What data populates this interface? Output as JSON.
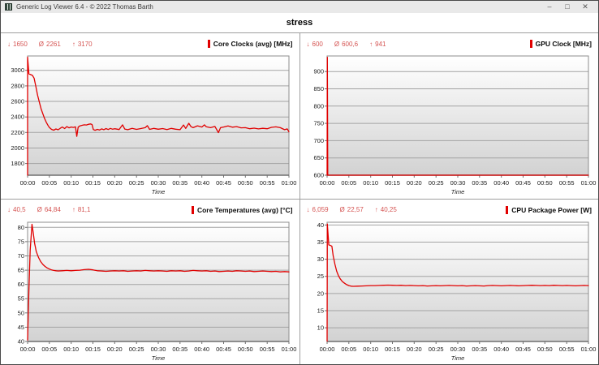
{
  "window": {
    "title": "Generic Log Viewer 6.4 - © 2022 Thomas Barth",
    "controls": {
      "minimize": "–",
      "maximize": "□",
      "close": "✕"
    }
  },
  "header": {
    "dataset_label": "stress"
  },
  "colors": {
    "series_red": "#e10000",
    "stats_red": "#d55452",
    "grid_line": "#a3a3a3",
    "plot_border": "#8d8d8d",
    "axis_line": "#6f6f6f",
    "plot_bg_top": "#ffffff",
    "plot_bg_bottom": "#d2d2d2",
    "titlebar_bg": "#e9e9e9"
  },
  "chart_common": {
    "xlabel": "Time",
    "x_tick_step_minutes": 5,
    "x_tick_labels": [
      "00:00",
      "00:05",
      "00:10",
      "00:15",
      "00:20",
      "00:25",
      "00:30",
      "00:35",
      "00:40",
      "00:45",
      "00:50",
      "00:55",
      "01:00"
    ]
  },
  "chart_data": [
    {
      "id": "core-clocks",
      "type": "line",
      "title": "Core Clocks (avg) [MHz]",
      "stats": [
        {
          "glyph": "↓",
          "value": "1650"
        },
        {
          "glyph": "Ø",
          "value": "2261"
        },
        {
          "glyph": "↑",
          "value": "3170"
        }
      ],
      "xlabel": "Time",
      "xlim": [
        0,
        60
      ],
      "ylim": [
        1650,
        3185
      ],
      "y_ticks": [
        1800,
        2000,
        2200,
        2400,
        2600,
        2800,
        3000
      ],
      "points": [
        [
          0,
          1650
        ],
        [
          0,
          3170
        ],
        [
          0.3,
          2955
        ],
        [
          0.7,
          2945
        ],
        [
          1.1,
          2935
        ],
        [
          1.5,
          2900
        ],
        [
          1.9,
          2790
        ],
        [
          2.3,
          2680
        ],
        [
          2.7,
          2590
        ],
        [
          3.1,
          2505
        ],
        [
          3.5,
          2440
        ],
        [
          3.9,
          2380
        ],
        [
          4.3,
          2330
        ],
        [
          4.7,
          2290
        ],
        [
          5,
          2265
        ],
        [
          5.5,
          2240
        ],
        [
          6,
          2230
        ],
        [
          6.5,
          2245
        ],
        [
          7,
          2235
        ],
        [
          7.5,
          2255
        ],
        [
          8,
          2270
        ],
        [
          8.5,
          2250
        ],
        [
          9,
          2275
        ],
        [
          9.5,
          2260
        ],
        [
          10,
          2270
        ],
        [
          10.5,
          2265
        ],
        [
          11,
          2272
        ],
        [
          11.3,
          2150
        ],
        [
          11.6,
          2268
        ],
        [
          12,
          2285
        ],
        [
          12.5,
          2292
        ],
        [
          13,
          2298
        ],
        [
          13.5,
          2296
        ],
        [
          14,
          2306
        ],
        [
          14.5,
          2310
        ],
        [
          14.8,
          2302
        ],
        [
          15.1,
          2238
        ],
        [
          15.5,
          2228
        ],
        [
          16,
          2240
        ],
        [
          16.5,
          2232
        ],
        [
          17,
          2246
        ],
        [
          17.5,
          2236
        ],
        [
          18,
          2250
        ],
        [
          18.5,
          2238
        ],
        [
          19,
          2252
        ],
        [
          19.5,
          2242
        ],
        [
          20,
          2248
        ],
        [
          21,
          2238
        ],
        [
          21.8,
          2298
        ],
        [
          22.3,
          2244
        ],
        [
          23,
          2236
        ],
        [
          24,
          2252
        ],
        [
          25,
          2240
        ],
        [
          26,
          2250
        ],
        [
          27,
          2262
        ],
        [
          27.5,
          2288
        ],
        [
          28,
          2240
        ],
        [
          29,
          2252
        ],
        [
          30,
          2242
        ],
        [
          31,
          2250
        ],
        [
          32,
          2238
        ],
        [
          33,
          2252
        ],
        [
          34,
          2242
        ],
        [
          35,
          2236
        ],
        [
          35.8,
          2296
        ],
        [
          36.3,
          2252
        ],
        [
          37,
          2318
        ],
        [
          37.5,
          2276
        ],
        [
          38,
          2262
        ],
        [
          39,
          2286
        ],
        [
          40,
          2270
        ],
        [
          40.6,
          2298
        ],
        [
          41,
          2274
        ],
        [
          42,
          2262
        ],
        [
          43,
          2278
        ],
        [
          43.8,
          2198
        ],
        [
          44.3,
          2262
        ],
        [
          45,
          2270
        ],
        [
          46,
          2284
        ],
        [
          47,
          2268
        ],
        [
          48,
          2276
        ],
        [
          49,
          2260
        ],
        [
          50,
          2262
        ],
        [
          51,
          2248
        ],
        [
          52,
          2256
        ],
        [
          53,
          2246
        ],
        [
          54,
          2254
        ],
        [
          55,
          2248
        ],
        [
          56,
          2266
        ],
        [
          57,
          2272
        ],
        [
          58,
          2262
        ],
        [
          59,
          2236
        ],
        [
          59.6,
          2246
        ],
        [
          60,
          2208
        ]
      ]
    },
    {
      "id": "gpu-clock",
      "type": "line",
      "title": "GPU Clock [MHz]",
      "stats": [
        {
          "glyph": "↓",
          "value": "600"
        },
        {
          "glyph": "Ø",
          "value": "600,6"
        },
        {
          "glyph": "↑",
          "value": "941"
        }
      ],
      "xlabel": "Time",
      "xlim": [
        0,
        60
      ],
      "ylim": [
        600,
        945
      ],
      "y_ticks": [
        600,
        650,
        700,
        750,
        800,
        850,
        900
      ],
      "points": [
        [
          0,
          600
        ],
        [
          0.05,
          941
        ],
        [
          0.15,
          600
        ],
        [
          60,
          600
        ]
      ]
    },
    {
      "id": "core-temperatures",
      "type": "line",
      "title": "Core Temperatures (avg) [°C]",
      "stats": [
        {
          "glyph": "↓",
          "value": "40,5"
        },
        {
          "glyph": "Ø",
          "value": "64,84"
        },
        {
          "glyph": "↑",
          "value": "81,1"
        }
      ],
      "xlabel": "Time",
      "xlim": [
        0,
        60
      ],
      "ylim": [
        40,
        81.8
      ],
      "y_ticks": [
        40,
        45,
        50,
        55,
        60,
        65,
        70,
        75,
        80
      ],
      "points": [
        [
          0,
          40.5
        ],
        [
          0.3,
          58
        ],
        [
          0.6,
          72
        ],
        [
          1,
          81.1
        ],
        [
          1.3,
          78
        ],
        [
          1.6,
          74.5
        ],
        [
          2,
          71.5
        ],
        [
          2.5,
          69.5
        ],
        [
          3,
          68
        ],
        [
          3.5,
          67
        ],
        [
          4,
          66.3
        ],
        [
          4.5,
          65.8
        ],
        [
          5,
          65.4
        ],
        [
          5.5,
          65.1
        ],
        [
          6,
          64.9
        ],
        [
          6.5,
          64.8
        ],
        [
          7,
          64.7
        ],
        [
          8,
          64.8
        ],
        [
          9,
          64.9
        ],
        [
          10,
          64.8
        ],
        [
          11,
          64.9
        ],
        [
          12,
          65
        ],
        [
          13,
          65.2
        ],
        [
          14,
          65.3
        ],
        [
          15,
          65.1
        ],
        [
          16,
          64.8
        ],
        [
          17,
          64.7
        ],
        [
          18,
          64.6
        ],
        [
          19,
          64.7
        ],
        [
          20,
          64.8
        ],
        [
          21,
          64.7
        ],
        [
          22,
          64.8
        ],
        [
          23,
          64.6
        ],
        [
          24,
          64.7
        ],
        [
          25,
          64.8
        ],
        [
          26,
          64.7
        ],
        [
          27,
          64.9
        ],
        [
          28,
          64.8
        ],
        [
          29,
          64.7
        ],
        [
          30,
          64.8
        ],
        [
          31,
          64.7
        ],
        [
          32,
          64.6
        ],
        [
          33,
          64.8
        ],
        [
          34,
          64.7
        ],
        [
          35,
          64.8
        ],
        [
          36,
          64.6
        ],
        [
          37,
          64.7
        ],
        [
          38,
          64.9
        ],
        [
          39,
          64.8
        ],
        [
          40,
          64.7
        ],
        [
          41,
          64.8
        ],
        [
          42,
          64.6
        ],
        [
          43,
          64.7
        ],
        [
          44,
          64.5
        ],
        [
          45,
          64.6
        ],
        [
          46,
          64.7
        ],
        [
          47,
          64.6
        ],
        [
          48,
          64.8
        ],
        [
          49,
          64.7
        ],
        [
          50,
          64.6
        ],
        [
          51,
          64.7
        ],
        [
          52,
          64.5
        ],
        [
          53,
          64.6
        ],
        [
          54,
          64.7
        ],
        [
          55,
          64.6
        ],
        [
          56,
          64.5
        ],
        [
          57,
          64.6
        ],
        [
          58,
          64.4
        ],
        [
          59,
          64.5
        ],
        [
          60,
          64.4
        ]
      ]
    },
    {
      "id": "cpu-package-power",
      "type": "line",
      "title": "CPU Package Power [W]",
      "stats": [
        {
          "glyph": "↓",
          "value": "6,059"
        },
        {
          "glyph": "Ø",
          "value": "22,57"
        },
        {
          "glyph": "↑",
          "value": "40,25"
        }
      ],
      "xlabel": "Time",
      "xlim": [
        0,
        60
      ],
      "ylim": [
        6,
        40.8
      ],
      "y_ticks": [
        10,
        15,
        20,
        25,
        30,
        35,
        40
      ],
      "points": [
        [
          0,
          6.1
        ],
        [
          0.05,
          40.25
        ],
        [
          0.4,
          34.2
        ],
        [
          0.8,
          34
        ],
        [
          1.1,
          33.8
        ],
        [
          1.4,
          31
        ],
        [
          1.8,
          28.5
        ],
        [
          2.2,
          26.5
        ],
        [
          2.6,
          25.2
        ],
        [
          3,
          24.3
        ],
        [
          3.5,
          23.5
        ],
        [
          4,
          23
        ],
        [
          4.5,
          22.6
        ],
        [
          5,
          22.3
        ],
        [
          5.5,
          22.15
        ],
        [
          6,
          22.1
        ],
        [
          7,
          22.15
        ],
        [
          8,
          22.2
        ],
        [
          9,
          22.25
        ],
        [
          10,
          22.3
        ],
        [
          11,
          22.3
        ],
        [
          12,
          22.35
        ],
        [
          13,
          22.4
        ],
        [
          14,
          22.45
        ],
        [
          15,
          22.4
        ],
        [
          16,
          22.35
        ],
        [
          17,
          22.4
        ],
        [
          18,
          22.3
        ],
        [
          19,
          22.35
        ],
        [
          20,
          22.3
        ],
        [
          21,
          22.25
        ],
        [
          22,
          22.3
        ],
        [
          23,
          22.2
        ],
        [
          24,
          22.25
        ],
        [
          25,
          22.3
        ],
        [
          26,
          22.25
        ],
        [
          27,
          22.3
        ],
        [
          28,
          22.35
        ],
        [
          29,
          22.3
        ],
        [
          30,
          22.25
        ],
        [
          31,
          22.3
        ],
        [
          32,
          22.2
        ],
        [
          33,
          22.25
        ],
        [
          34,
          22.3
        ],
        [
          35,
          22.25
        ],
        [
          36,
          22.2
        ],
        [
          37,
          22.3
        ],
        [
          38,
          22.35
        ],
        [
          39,
          22.3
        ],
        [
          40,
          22.25
        ],
        [
          41,
          22.3
        ],
        [
          42,
          22.35
        ],
        [
          43,
          22.3
        ],
        [
          44,
          22.25
        ],
        [
          45,
          22.3
        ],
        [
          46,
          22.35
        ],
        [
          47,
          22.4
        ],
        [
          48,
          22.35
        ],
        [
          49,
          22.3
        ],
        [
          50,
          22.35
        ],
        [
          51,
          22.3
        ],
        [
          52,
          22.4
        ],
        [
          53,
          22.35
        ],
        [
          54,
          22.3
        ],
        [
          55,
          22.35
        ],
        [
          56,
          22.3
        ],
        [
          57,
          22.25
        ],
        [
          58,
          22.3
        ],
        [
          59,
          22.35
        ],
        [
          60,
          22.3
        ]
      ]
    }
  ]
}
